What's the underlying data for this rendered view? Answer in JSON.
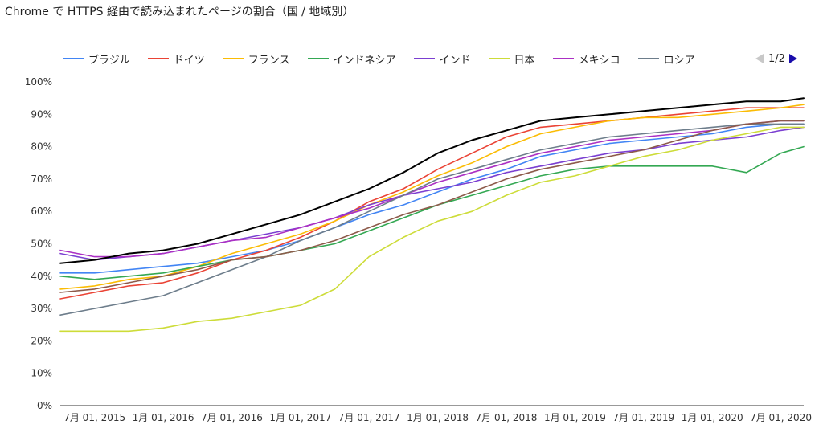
{
  "title": "Chrome で HTTPS 経由で読み込まれたページの割合（国 / 地域別）",
  "pager": {
    "label": "1/2"
  },
  "chart_data": {
    "type": "line",
    "title": "Chrome で HTTPS 経由で読み込まれたページの割合（国 / 地域別）",
    "ylim": [
      0,
      100
    ],
    "y_ticks": [
      "0%",
      "10%",
      "20%",
      "30%",
      "40%",
      "50%",
      "60%",
      "70%",
      "80%",
      "90%",
      "100%"
    ],
    "x_ticks": [
      "7月 01, 2015",
      "1月 01, 2016",
      "7月 01, 2016",
      "1月 01, 2017",
      "7月 01, 2017",
      "1月 01, 2018",
      "7月 01, 2018",
      "1月 01, 2019",
      "7月 01, 2019",
      "1月 01, 2020",
      "7月 01, 2020"
    ],
    "grid": false,
    "legend_position": "top",
    "x": [
      "2015-04",
      "2015-07",
      "2015-10",
      "2016-01",
      "2016-04",
      "2016-07",
      "2016-10",
      "2017-01",
      "2017-04",
      "2017-07",
      "2017-10",
      "2018-01",
      "2018-04",
      "2018-07",
      "2018-10",
      "2019-01",
      "2019-04",
      "2019-07",
      "2019-10",
      "2020-01",
      "2020-04",
      "2020-07",
      "2020-09"
    ],
    "series": [
      {
        "name": "ブラジル",
        "color": "#4285f4",
        "values": [
          41,
          41,
          42,
          43,
          44,
          46,
          48,
          51,
          55,
          59,
          62,
          66,
          70,
          73,
          77,
          79,
          81,
          82,
          83,
          84,
          86,
          87,
          87
        ]
      },
      {
        "name": "ドイツ",
        "color": "#ea4335",
        "values": [
          33,
          35,
          37,
          38,
          41,
          45,
          48,
          52,
          57,
          63,
          67,
          73,
          78,
          83,
          86,
          87,
          88,
          89,
          90,
          91,
          92,
          92,
          92
        ]
      },
      {
        "name": "フランス",
        "color": "#fbbc04",
        "values": [
          36,
          37,
          39,
          40,
          43,
          47,
          50,
          53,
          57,
          62,
          66,
          71,
          75,
          80,
          84,
          86,
          88,
          89,
          89,
          90,
          91,
          92,
          93
        ]
      },
      {
        "name": "インドネシア",
        "color": "#34a853",
        "values": [
          40,
          39,
          40,
          41,
          43,
          45,
          46,
          48,
          50,
          54,
          58,
          62,
          65,
          68,
          71,
          73,
          74,
          74,
          74,
          74,
          72,
          78,
          80
        ]
      },
      {
        "name": "インド",
        "color": "#7b3fd1",
        "values": [
          47,
          45,
          46,
          47,
          49,
          51,
          53,
          55,
          58,
          62,
          65,
          67,
          69,
          72,
          74,
          76,
          78,
          79,
          81,
          82,
          83,
          85,
          86
        ]
      },
      {
        "name": "日本",
        "color": "#cddc39",
        "values": [
          23,
          23,
          23,
          24,
          26,
          27,
          29,
          31,
          36,
          46,
          52,
          57,
          60,
          65,
          69,
          71,
          74,
          77,
          79,
          82,
          84,
          86,
          86
        ]
      },
      {
        "name": "メキシコ",
        "color": "#ab30c4",
        "values": [
          48,
          46,
          46,
          47,
          49,
          51,
          52,
          55,
          58,
          61,
          65,
          69,
          72,
          75,
          78,
          80,
          82,
          83,
          84,
          85,
          87,
          88,
          88
        ]
      },
      {
        "name": "ロシア",
        "color": "#6d7d8b",
        "values": [
          28,
          30,
          32,
          34,
          38,
          42,
          46,
          51,
          55,
          60,
          65,
          70,
          73,
          76,
          79,
          81,
          83,
          84,
          85,
          86,
          87,
          87,
          87
        ]
      },
      {
        "color": "#8d5a4a",
        "values": [
          35,
          36,
          38,
          40,
          42,
          45,
          46,
          48,
          51,
          55,
          59,
          62,
          66,
          70,
          73,
          75,
          77,
          79,
          82,
          85,
          87,
          88,
          88
        ]
      },
      {
        "color": "#000000",
        "values": [
          44,
          45,
          47,
          48,
          50,
          53,
          56,
          59,
          63,
          67,
          72,
          78,
          82,
          85,
          88,
          89,
          90,
          91,
          92,
          93,
          94,
          94,
          95
        ]
      }
    ]
  }
}
